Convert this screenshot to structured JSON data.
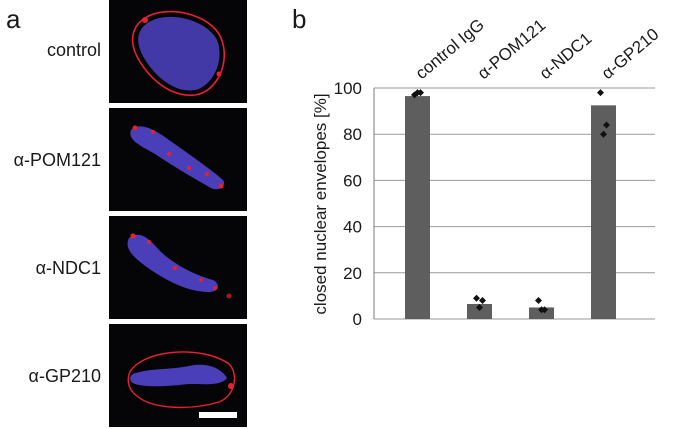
{
  "panels": {
    "a": "a",
    "b": "b"
  },
  "microscopy": {
    "rows": [
      {
        "label": "control"
      },
      {
        "label": "α-POM121"
      },
      {
        "label": "α-NDC1"
      },
      {
        "label": "α-GP210"
      }
    ],
    "colors": {
      "chromatin": "#4a3fb8",
      "envelope": "#e82030",
      "background": "#050508",
      "scale_bar": "#ffffff"
    }
  },
  "chart_data": {
    "type": "bar",
    "categories": [
      "control IgG",
      "α-POM121",
      "α-NDC1",
      "α-GP210"
    ],
    "values": [
      96.5,
      6.5,
      5,
      92.5
    ],
    "points": [
      [
        97,
        98,
        98
      ],
      [
        9,
        8,
        5
      ],
      [
        8,
        4,
        4
      ],
      [
        98,
        84,
        80
      ]
    ],
    "ylabel": "closed nuclear envelopes [%]",
    "ylim": [
      0,
      100
    ],
    "yticks": [
      0,
      20,
      40,
      60,
      80,
      100
    ],
    "grid": true,
    "bar_color": "#5e5e5e",
    "grid_color": "#9a9a9a",
    "point_color": "#111111"
  }
}
